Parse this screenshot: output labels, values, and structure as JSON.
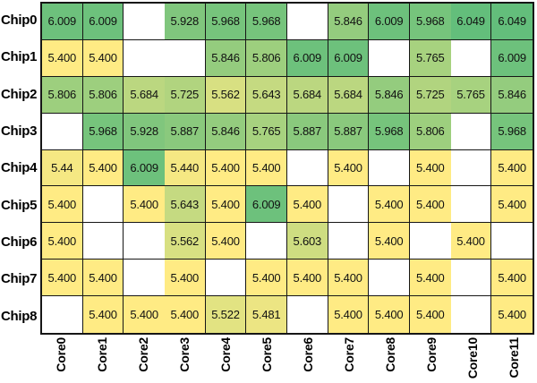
{
  "heatmap": {
    "row_labels": [
      "Chip0",
      "Chip1",
      "Chip2",
      "Chip3",
      "Chip4",
      "Chip5",
      "Chip6",
      "Chip7",
      "Chip8"
    ],
    "col_labels": [
      "Core0",
      "Core1",
      "Core2",
      "Core3",
      "Core4",
      "Core5",
      "Core6",
      "Core7",
      "Core8",
      "Core9",
      "Core10",
      "Core11"
    ],
    "cells": [
      [
        "6.009",
        "6.009",
        null,
        "5.928",
        "5.968",
        "5.968",
        null,
        "5.846",
        "6.009",
        "5.968",
        "6.049",
        "6.049"
      ],
      [
        "5.400",
        "5.400",
        null,
        null,
        "5.846",
        "5.806",
        "6.009",
        "6.009",
        null,
        "5.765",
        null,
        "6.009"
      ],
      [
        "5.806",
        "5.806",
        "5.684",
        "5.725",
        "5.562",
        "5.643",
        "5.684",
        "5.684",
        "5.846",
        "5.725",
        "5.765",
        "5.846"
      ],
      [
        null,
        "5.968",
        "5.928",
        "5.887",
        "5.846",
        "5.765",
        "5.887",
        "5.887",
        "5.968",
        "5.806",
        null,
        "5.968"
      ],
      [
        "5.44",
        "5.400",
        "6.009",
        "5.440",
        "5.400",
        "5.400",
        null,
        "5.400",
        null,
        "5.400",
        null,
        "5.400"
      ],
      [
        "5.400",
        null,
        "5.400",
        "5.643",
        "5.400",
        "6.009",
        "5.400",
        null,
        "5.400",
        "5.400",
        null,
        "5.400"
      ],
      [
        "5.400",
        null,
        null,
        "5.562",
        "5.400",
        null,
        "5.603",
        null,
        "5.400",
        null,
        "5.400",
        null
      ],
      [
        "5.400",
        "5.400",
        null,
        "5.400",
        null,
        "5.400",
        "5.400",
        "5.400",
        null,
        "5.400",
        null,
        "5.400"
      ],
      [
        null,
        "5.400",
        "5.400",
        "5.400",
        "5.522",
        "5.481",
        null,
        "5.400",
        "5.400",
        "5.400",
        null,
        "5.400"
      ]
    ],
    "missing_vertical_border_after_cols": [
      2,
      9
    ],
    "colors": {
      "scale_min_color": "#FFEB84",
      "scale_max_color": "#63BE7B",
      "empty_cell_color": "#FFFFFF",
      "border_color": "#161616",
      "text_color": "#111111"
    }
  },
  "chart_data": {
    "type": "heatmap",
    "title": "",
    "xlabel": "",
    "ylabel": "",
    "x_tick_labels": [
      "Core0",
      "Core1",
      "Core2",
      "Core3",
      "Core4",
      "Core5",
      "Core6",
      "Core7",
      "Core8",
      "Core9",
      "Core10",
      "Core11"
    ],
    "y_tick_labels": [
      "Chip0",
      "Chip1",
      "Chip2",
      "Chip3",
      "Chip4",
      "Chip5",
      "Chip6",
      "Chip7",
      "Chip8"
    ],
    "values": [
      [
        6.009,
        6.009,
        null,
        5.928,
        5.968,
        5.968,
        null,
        5.846,
        6.009,
        5.968,
        6.049,
        6.049
      ],
      [
        5.4,
        5.4,
        null,
        null,
        5.846,
        5.806,
        6.009,
        6.009,
        null,
        5.765,
        null,
        6.009
      ],
      [
        5.806,
        5.806,
        5.684,
        5.725,
        5.562,
        5.643,
        5.684,
        5.684,
        5.846,
        5.725,
        5.765,
        5.846
      ],
      [
        null,
        5.968,
        5.928,
        5.887,
        5.846,
        5.765,
        5.887,
        5.887,
        5.968,
        5.806,
        null,
        5.968
      ],
      [
        5.44,
        5.4,
        6.009,
        5.44,
        5.4,
        5.4,
        null,
        5.4,
        null,
        5.4,
        null,
        5.4
      ],
      [
        5.4,
        null,
        5.4,
        5.643,
        5.4,
        6.009,
        5.4,
        null,
        5.4,
        5.4,
        null,
        5.4
      ],
      [
        5.4,
        null,
        null,
        5.562,
        5.4,
        null,
        5.603,
        null,
        5.4,
        null,
        5.4,
        null
      ],
      [
        5.4,
        5.4,
        null,
        5.4,
        null,
        5.4,
        5.4,
        5.4,
        null,
        5.4,
        null,
        5.4
      ],
      [
        null,
        5.4,
        5.4,
        5.4,
        5.522,
        5.481,
        null,
        5.4,
        5.4,
        5.4,
        null,
        5.4
      ]
    ],
    "color_scale": {
      "type": "2-color-linear",
      "min_value": 5.4,
      "max_value": 6.049,
      "min_color": "#FFEB84",
      "max_color": "#63BE7B"
    },
    "grid": true,
    "legend": false,
    "annotations": "cell values shown in each colored cell; blank cells are white"
  }
}
